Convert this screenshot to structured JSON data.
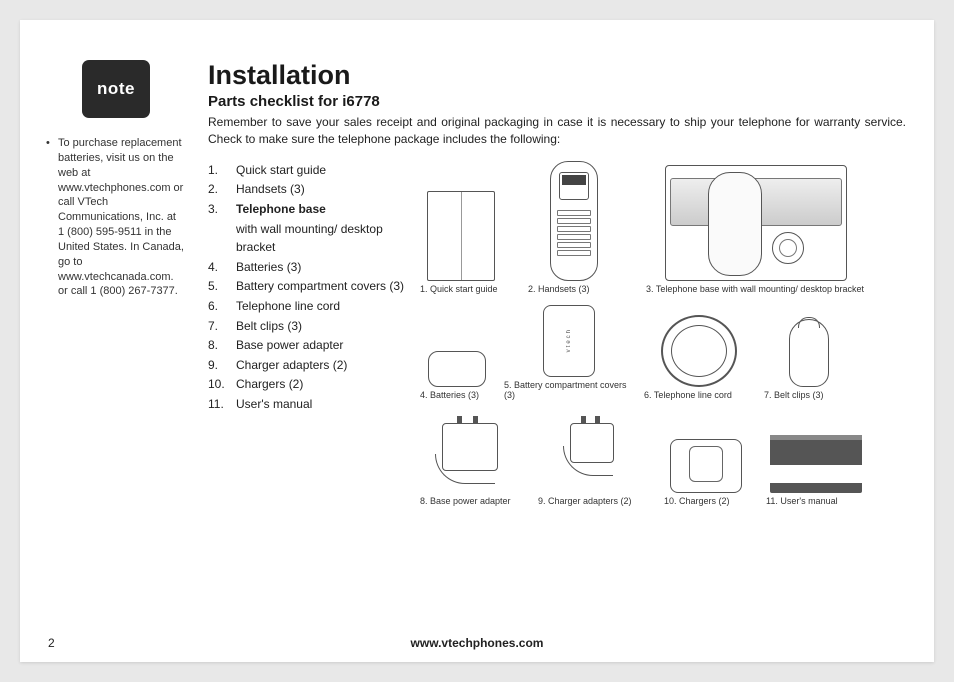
{
  "note": {
    "badge": "note",
    "text": "To purchase replacement batteries, visit us on the web at www.vtechphones.com or call VTech Communications, Inc. at 1 (800) 595-9511 in the United States. In Canada, go to www.vtechcanada.com. or call  1 (800) 267-7377."
  },
  "title": "Installation",
  "subtitle": "Parts checklist for i6778",
  "intro": "Remember to save your sales receipt and original packaging in case it is necessary to ship your telephone for warranty service. Check to make sure the telephone package includes the following:",
  "checklist": [
    {
      "num": "1.",
      "text": "Quick start guide",
      "bold": false
    },
    {
      "num": "2.",
      "text": "Handsets (3)",
      "bold": false
    },
    {
      "num": "3.",
      "text": "Telephone base",
      "bold": true,
      "sub": "with wall mounting/ desktop bracket"
    },
    {
      "num": "4.",
      "text": "Batteries (3)",
      "bold": false
    },
    {
      "num": "5.",
      "text": "Battery compartment covers (3)",
      "bold": false
    },
    {
      "num": "6.",
      "text": "Telephone line cord",
      "bold": false
    },
    {
      "num": "7.",
      "text": "Belt clips (3)",
      "bold": false
    },
    {
      "num": "8.",
      "text": "Base power adapter",
      "bold": false
    },
    {
      "num": "9.",
      "text": "Charger adapters (2)",
      "bold": false
    },
    {
      "num": "10.",
      "text": "Chargers (2)",
      "bold": false
    },
    {
      "num": "11.",
      "text": "User's manual",
      "bold": false
    }
  ],
  "captions": {
    "c1": "1. Quick start guide",
    "c2": "2. Handsets (3)",
    "c3": "3. Telephone base with wall mounting/ desktop bracket",
    "c4": "4. Batteries (3)",
    "c5": "5. Battery compartment covers (3)",
    "c6": "6. Telephone line cord",
    "c7": "7. Belt clips (3)",
    "c8": "8. Base power adapter",
    "c9": "9. Charger adapters (2)",
    "c10": "10. Chargers (2)",
    "c11": "11. User's manual"
  },
  "coverBrand": "vtech",
  "footer": {
    "page": "2",
    "url": "www.vtechphones.com"
  }
}
